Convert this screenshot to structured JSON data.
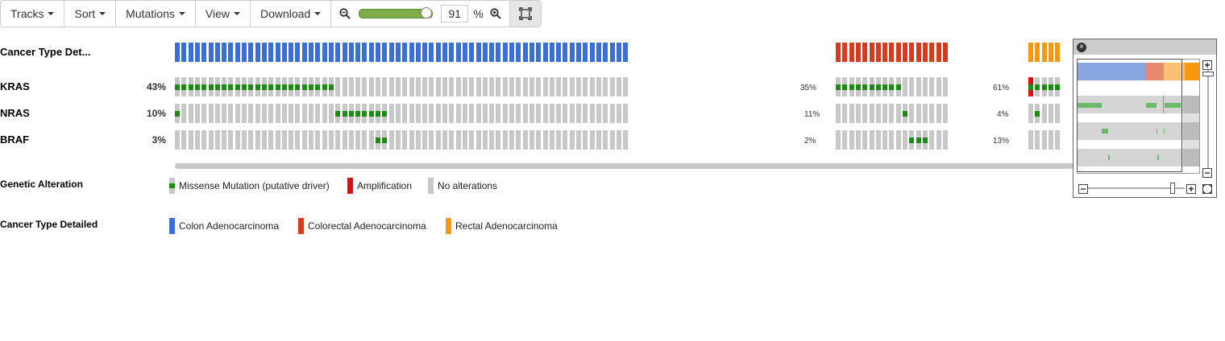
{
  "toolbar": {
    "tracks_label": "Tracks",
    "sort_label": "Sort",
    "mutations_label": "Mutations",
    "view_label": "View",
    "download_label": "Download",
    "zoom_value": "91",
    "zoom_unit": "%",
    "zoom_level": 0.91
  },
  "tracks": {
    "cancer_type": {
      "label": "Cancer Type Det..."
    },
    "kras": {
      "label": "KRAS",
      "pct": "43%",
      "pct_group2": "35%",
      "pct_group3": "61%"
    },
    "nras": {
      "label": "NRAS",
      "pct": "10%",
      "pct_group2": "11%",
      "pct_group3": "4%"
    },
    "braf": {
      "label": "BRAF",
      "pct": "3%",
      "pct_group2": "2%",
      "pct_group3": "13%"
    }
  },
  "groups": [
    {
      "name": "Colon Adenocarcinoma",
      "samples": 68,
      "color": "#3a6fd8",
      "kras_mut": [
        0,
        23
      ],
      "nras_mut": [
        24,
        31
      ],
      "nras_single": [
        0
      ],
      "braf_mut": [
        30,
        31
      ]
    },
    {
      "name": "Colorectal Adenocarcinoma",
      "samples": 17,
      "color": "#d9391c",
      "kras_mut": [
        0,
        9
      ],
      "nras_single": [
        10
      ],
      "braf_mut": [
        11,
        13
      ]
    },
    {
      "name": "Rectal Adenocarcinoma",
      "samples": 5,
      "color": "#f7980e",
      "kras_mut": [
        0,
        4
      ],
      "kras_amp": [
        0
      ],
      "nras_single": [
        1
      ]
    }
  ],
  "legend": {
    "genetic_title": "Genetic Alteration",
    "missense": "Missense Mutation (putative driver)",
    "amplification": "Amplification",
    "no_alterations": "No alterations",
    "cancer_title": "Cancer Type Detailed",
    "colon": "Colon Adenocarcinoma",
    "colorectal": "Colorectal Adenocarcinoma",
    "rectal": "Rectal Adenocarcinoma"
  },
  "colors": {
    "missense": "#1a8c12",
    "amplification": "#e01010",
    "no_alteration": "#c8c8c8",
    "colon": "#3a6fd8",
    "colorectal": "#d9391c",
    "rectal": "#f7980e"
  },
  "icons": {
    "zoom_out": "magnifier-minus-icon",
    "zoom_in": "magnifier-plus-icon",
    "fit": "fit-to-screen-icon",
    "close": "close-circle-icon"
  }
}
